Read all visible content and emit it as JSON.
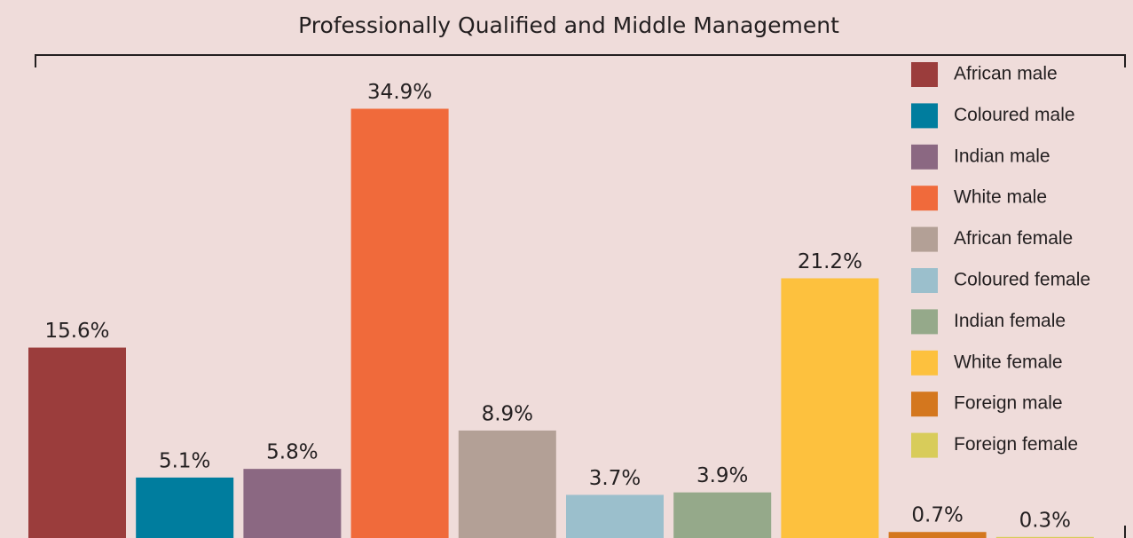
{
  "chart_data": {
    "type": "bar",
    "title": "Professionally Qualified and Middle Management",
    "categories": [
      "African male",
      "Coloured male",
      "Indian male",
      "White male",
      "African female",
      "Coloured female",
      "Indian female",
      "White female",
      "Foreign male",
      "Foreign female"
    ],
    "values": [
      15.6,
      5.1,
      5.8,
      34.9,
      8.9,
      3.7,
      3.9,
      21.2,
      0.7,
      0.3
    ],
    "value_labels": [
      "15.6%",
      "5.1%",
      "5.8%",
      "34.9%",
      "8.9%",
      "3.7%",
      "3.9%",
      "21.2%",
      "0.7%",
      "0.3%"
    ],
    "colors": [
      "#9b3d3c",
      "#007d9e",
      "#8b6882",
      "#f06a3b",
      "#b3a096",
      "#9bbfcc",
      "#95a98a",
      "#fdc13e",
      "#d4771e",
      "#d8cc5a"
    ],
    "legend": "top-right"
  }
}
